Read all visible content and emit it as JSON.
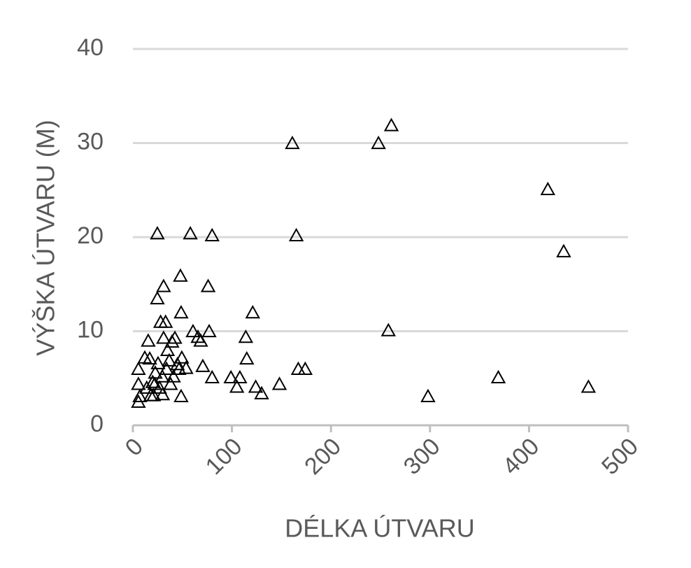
{
  "chart_data": {
    "type": "scatter",
    "x_label": "DÉLKA ÚTVARU",
    "y_label": "VÝŠKA ÚTVARU (M)",
    "xlim": [
      0,
      500
    ],
    "xticks": [
      0,
      100,
      200,
      300,
      400,
      500
    ],
    "ylim": [
      0,
      40
    ],
    "yticks": [
      0,
      10,
      20,
      30,
      40
    ],
    "grid": true,
    "color": "#000000",
    "marker": "triangle",
    "x": [
      5.6,
      5.6,
      5.6,
      7,
      12,
      14,
      15.5,
      17,
      20,
      21,
      22.6,
      24.7,
      24.7,
      25.4,
      27,
      28,
      29.7,
      30,
      31,
      31,
      33,
      34,
      35,
      36.7,
      38,
      39.5,
      41,
      42.4,
      45,
      46.6,
      48,
      48.7,
      48.7,
      49.4,
      53.7,
      58,
      60.7,
      65.7,
      68.5,
      70.6,
      76,
      77,
      80,
      80,
      99,
      105,
      108,
      114,
      115,
      121,
      124,
      130,
      148,
      161,
      165,
      167,
      174,
      248,
      258,
      261,
      298,
      369,
      419,
      435,
      460,
      18,
      22
    ],
    "y": [
      2.4,
      5.9,
      4.3,
      3,
      7.1,
      3.9,
      8.9,
      7,
      4.5,
      3.1,
      5.5,
      20.3,
      13.4,
      6.5,
      3.9,
      10.9,
      5.1,
      3.2,
      14.7,
      9.2,
      10.9,
      5.9,
      7.9,
      6.8,
      4.3,
      8.8,
      5.1,
      9.2,
      6.4,
      5.9,
      15.8,
      11.9,
      3.0,
      7.1,
      6.0,
      20.3,
      9.9,
      9.3,
      8.9,
      6.2,
      14.7,
      9.9,
      20.1,
      5.0,
      5.0,
      4.0,
      5.0,
      9.3,
      7.0,
      11.9,
      4.0,
      3.3,
      4.3,
      29.9,
      20.1,
      5.9,
      5.9,
      29.9,
      10.0,
      31.8,
      3.0,
      5.0,
      25.0,
      18.4,
      4.0,
      3.1,
      4.3
    ]
  }
}
